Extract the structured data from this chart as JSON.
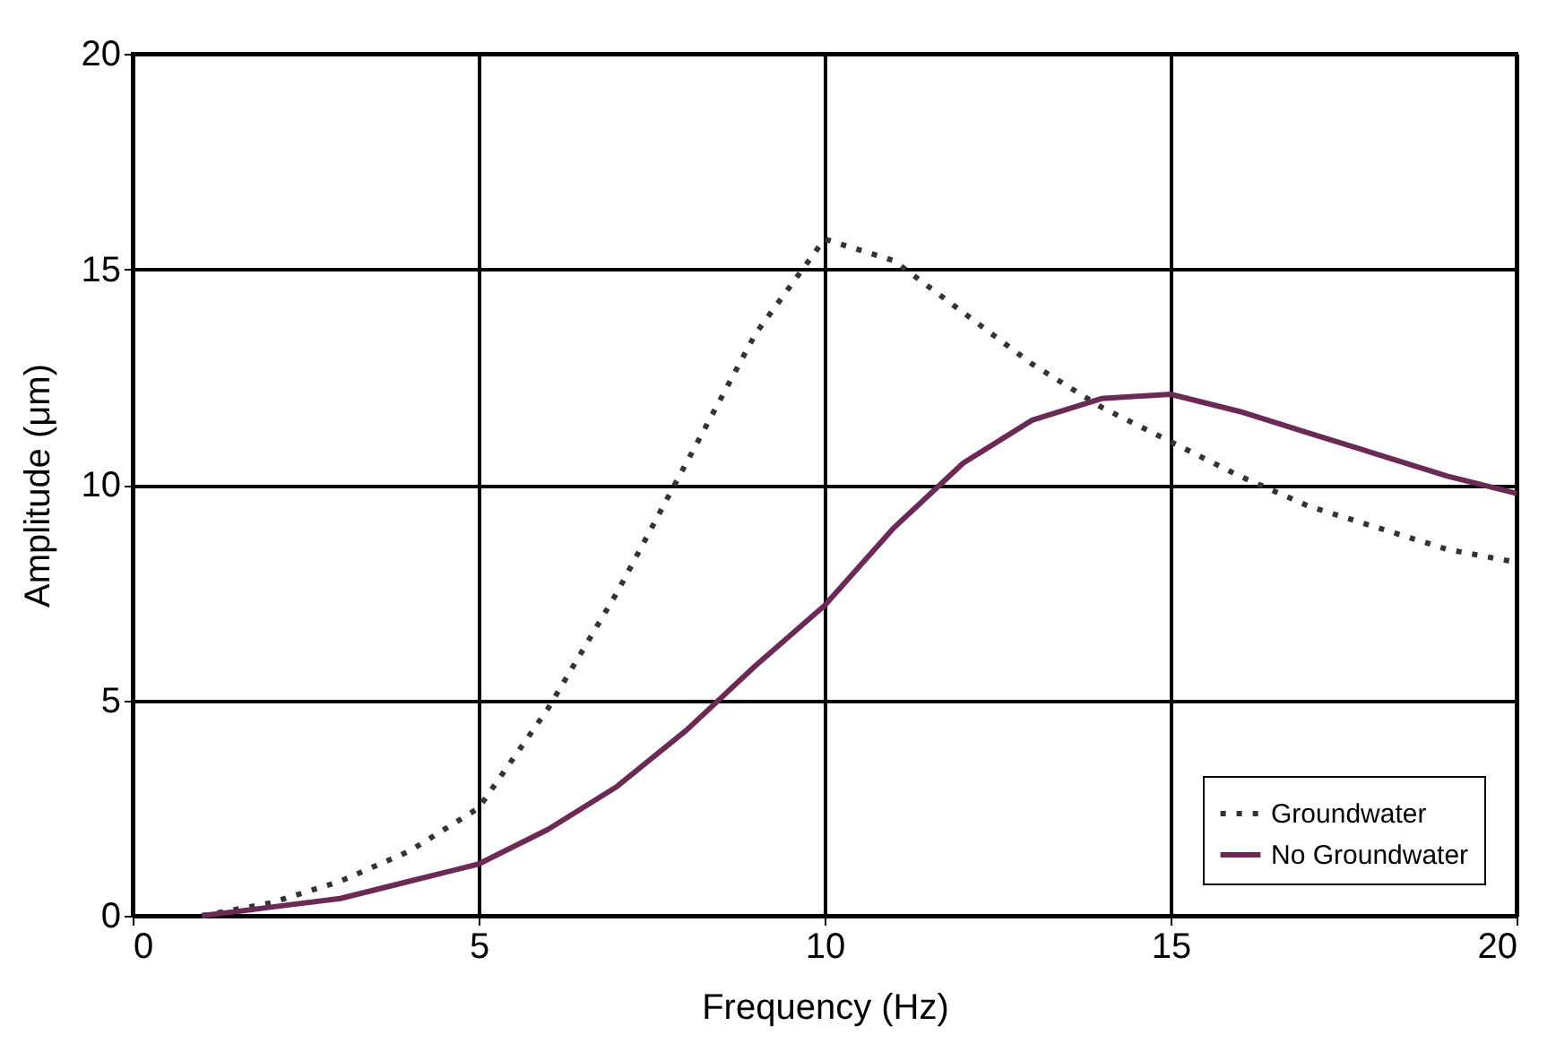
{
  "chart_data": {
    "type": "line",
    "xlabel": "Frequency (Hz)",
    "ylabel": "Amplitude (μm)",
    "x": [
      1,
      2,
      3,
      4,
      5,
      6,
      7,
      8,
      9,
      10,
      11,
      12,
      13,
      14,
      15,
      16,
      17,
      18,
      19,
      20
    ],
    "series": [
      {
        "name": "Groundwater",
        "color": "#333333",
        "line_style": "dotted",
        "values": [
          0,
          0.3,
          0.8,
          1.5,
          2.5,
          4.8,
          7.5,
          10.5,
          13.5,
          15.7,
          15.2,
          14,
          12.8,
          11.8,
          11,
          10.2,
          9.5,
          9,
          8.5,
          8.2
        ]
      },
      {
        "name": "No Groundwater",
        "color": "#6b2a55",
        "line_style": "solid",
        "values": [
          0,
          0.2,
          0.4,
          0.8,
          1.2,
          2,
          3,
          4.3,
          5.8,
          7.2,
          9,
          10.5,
          11.5,
          12,
          12.1,
          11.7,
          11.2,
          10.7,
          10.2,
          9.8
        ]
      }
    ],
    "xlim": [
      0,
      20
    ],
    "xticks": [
      0,
      5,
      10,
      15,
      20
    ],
    "ylim": [
      0,
      20
    ],
    "yticks": [
      0,
      5,
      10,
      15,
      20
    ],
    "grid": true,
    "legend": "bottom right"
  }
}
